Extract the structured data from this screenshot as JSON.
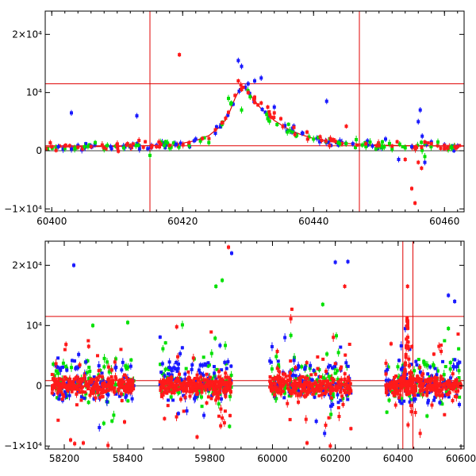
{
  "chart_data": [
    {
      "type": "scatter",
      "panel": "top",
      "title": "",
      "xlabel": "",
      "ylabel": "",
      "xlim": [
        60399,
        60463
      ],
      "ylim": [
        -10500,
        24000
      ],
      "x_ticks": [
        60400,
        60420,
        60440,
        60460
      ],
      "x_tick_labels": [
        "60400",
        "60420",
        "60440",
        "60460"
      ],
      "y_ticks": [
        -10000,
        0,
        10000,
        20000
      ],
      "y_tick_labels": [
        "−1×10⁴",
        "0",
        "10⁴",
        "2×10⁴"
      ],
      "grid": false,
      "legend": "none",
      "hlines": [
        11500,
        850
      ],
      "vlines": [
        60415,
        60447
      ],
      "model_curve": {
        "x": [
          60399,
          60405,
          60410,
          60415,
          60418,
          60420,
          60422,
          60424,
          60426,
          60427,
          60428,
          60429,
          60430,
          60431,
          60432,
          60434,
          60436,
          60438,
          60440,
          60442,
          60445,
          60450,
          60455,
          60463
        ],
        "y": [
          650,
          700,
          760,
          880,
          1050,
          1300,
          1750,
          2600,
          4400,
          6200,
          9000,
          11200,
          10200,
          8600,
          7200,
          5200,
          3800,
          2800,
          2100,
          1650,
          1250,
          950,
          850,
          800
        ]
      },
      "series": [
        {
          "name": "",
          "color": "#1a1aff",
          "x": [
            60401,
            60403,
            60404,
            60406,
            60409,
            60412,
            60413,
            60416,
            60419,
            60422,
            60425,
            60428.5,
            60429,
            60430,
            60431,
            60432,
            60434,
            60437,
            60442,
            60446,
            60449,
            60451,
            60453,
            60455,
            60456,
            60456.3,
            60456.6,
            60457,
            60458,
            60460,
            60462
          ],
          "y": [
            700,
            6500,
            900,
            800,
            700,
            650,
            6000,
            900,
            1100,
            2000,
            3000,
            15500,
            14500,
            11500,
            12000,
            12500,
            7500,
            4200,
            8500,
            1200,
            800,
            2000,
            -1500,
            700,
            5000,
            7000,
            2500,
            -2000,
            1500,
            1000,
            800
          ],
          "err": 500
        },
        {
          "name": "",
          "color": "#00e000",
          "x": [
            60402,
            60405,
            60408,
            60411,
            60415,
            60418,
            60421,
            60424,
            60426,
            60427,
            60429,
            60433,
            60436,
            60440,
            60444,
            60448,
            60450,
            60452,
            60454,
            60457,
            60459,
            60461
          ],
          "y": [
            400,
            700,
            300,
            500,
            -800,
            500,
            900,
            1400,
            4500,
            9000,
            7000,
            5500,
            3200,
            2000,
            1200,
            700,
            900,
            300,
            500,
            -1000,
            1500,
            600
          ],
          "err": 600
        },
        {
          "name": "",
          "color": "#ff1a1a",
          "x": [
            60400,
            60402,
            60404,
            60406,
            60408,
            60410,
            60412,
            60414,
            60416,
            60418,
            60419.5,
            60421,
            60423,
            60425,
            60426,
            60427,
            60428,
            60428.5,
            60429,
            60430,
            60431,
            60432,
            60433,
            60434,
            60435,
            60437,
            60439,
            60441,
            60443,
            60445,
            60448,
            60450,
            60452,
            60454,
            60455,
            60455.5,
            60456,
            60456.5,
            60457,
            60458,
            60460,
            60462
          ],
          "y": [
            700,
            800,
            600,
            700,
            500,
            900,
            800,
            600,
            700,
            900,
            16500,
            1400,
            2100,
            3600,
            4800,
            6600,
            9500,
            12000,
            10500,
            10000,
            9200,
            8200,
            7500,
            6500,
            5500,
            4000,
            3200,
            2400,
            1900,
            4200,
            1200,
            900,
            800,
            -1500,
            -6500,
            -9000,
            -2000,
            -3000,
            1500,
            1200,
            900,
            700
          ],
          "err": 400
        }
      ]
    },
    {
      "type": "scatter",
      "panel": "bottom",
      "title": "",
      "xlabel": "",
      "ylabel": "",
      "xlim_segments": [
        [
          58140,
          58460
        ],
        [
          59620,
          60610
        ]
      ],
      "ylim": [
        -10500,
        24000
      ],
      "x_ticks": [
        58200,
        58400,
        59800,
        60000,
        60200,
        60400,
        60600
      ],
      "x_tick_labels": [
        "58200",
        "58400",
        "59800",
        "60000",
        "60200",
        "60400",
        "60600"
      ],
      "y_ticks": [
        -10000,
        0,
        10000,
        20000
      ],
      "y_tick_labels": [
        "−1×10⁴",
        "0",
        "10⁴",
        "2×10⁴"
      ],
      "grid": false,
      "legend": "none",
      "hlines": [
        11500,
        850
      ],
      "vlines": [
        60415,
        60447
      ],
      "seasons": [
        [
          58160,
          58420
        ],
        [
          59640,
          59870
        ],
        [
          59990,
          60250
        ],
        [
          60360,
          60600
        ]
      ],
      "outliers": [
        {
          "series": 0,
          "x": 58230,
          "y": 20000
        },
        {
          "series": 0,
          "x": 59870,
          "y": 22000
        },
        {
          "series": 0,
          "x": 60200,
          "y": 20500
        },
        {
          "series": 0,
          "x": 60240,
          "y": 20600
        },
        {
          "series": 0,
          "x": 60580,
          "y": 14000
        },
        {
          "series": 0,
          "x": 60560,
          "y": 15000
        },
        {
          "series": 1,
          "x": 59840,
          "y": 17500
        },
        {
          "series": 1,
          "x": 59820,
          "y": 16500
        },
        {
          "series": 1,
          "x": 58400,
          "y": 10500
        },
        {
          "series": 1,
          "x": 58290,
          "y": 10000
        },
        {
          "series": 1,
          "x": 60160,
          "y": 13500
        },
        {
          "series": 1,
          "x": 60560,
          "y": 9500
        },
        {
          "series": 2,
          "x": 59860,
          "y": 23000
        },
        {
          "series": 2,
          "x": 60230,
          "y": 16500
        },
        {
          "series": 2,
          "x": 58220,
          "y": -9000
        },
        {
          "series": 2,
          "x": 58260,
          "y": -9500
        },
        {
          "series": 2,
          "x": 58390,
          "y": -6000
        },
        {
          "series": 2,
          "x": 59760,
          "y": -8500
        },
        {
          "series": 2,
          "x": 60110,
          "y": -9500
        },
        {
          "series": 2,
          "x": 60430,
          "y": 16500
        }
      ],
      "series": [
        {
          "name": "",
          "color": "#1a1aff"
        },
        {
          "name": "",
          "color": "#00e000"
        },
        {
          "name": "",
          "color": "#ff1a1a"
        }
      ]
    }
  ]
}
